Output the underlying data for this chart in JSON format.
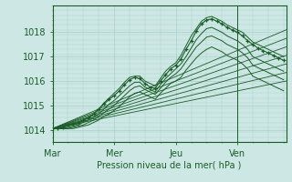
{
  "background_color": "#cde8e4",
  "grid_color": "#aacfc8",
  "line_color": "#1a5c28",
  "xlabel": "Pression niveau de la mer( hPa )",
  "xtick_labels": [
    "Mar",
    "Mer",
    "Jeu",
    "Ven"
  ],
  "xtick_positions": [
    0,
    24,
    48,
    72
  ],
  "ytick_labels": [
    "1014",
    "1015",
    "1016",
    "1017",
    "1018"
  ],
  "ytick_positions": [
    1014,
    1015,
    1016,
    1017,
    1018
  ],
  "ylim": [
    1013.6,
    1019.0
  ],
  "xlim": [
    0,
    91
  ],
  "vline_x": 72,
  "forecast_lines": [
    [
      1014.05,
      1016.0
    ],
    [
      1014.05,
      1016.35
    ],
    [
      1014.05,
      1016.7
    ],
    [
      1014.05,
      1017.05
    ],
    [
      1014.05,
      1017.4
    ],
    [
      1014.05,
      1017.75
    ],
    [
      1014.05,
      1018.1
    ]
  ],
  "main_x": [
    0,
    2,
    4,
    6,
    8,
    10,
    12,
    14,
    16,
    18,
    20,
    22,
    24,
    26,
    28,
    30,
    32,
    34,
    36,
    38,
    40,
    42,
    44,
    46,
    48,
    50,
    52,
    54,
    56,
    58,
    60,
    62,
    64,
    66,
    68,
    70,
    72,
    74,
    76,
    78,
    80,
    82,
    84,
    86,
    88,
    90
  ],
  "main_y": [
    1014.05,
    1014.05,
    1014.1,
    1014.2,
    1014.25,
    1014.3,
    1014.4,
    1014.5,
    1014.65,
    1014.85,
    1015.05,
    1015.25,
    1015.4,
    1015.6,
    1015.85,
    1016.05,
    1016.15,
    1016.1,
    1015.9,
    1015.75,
    1015.7,
    1016.0,
    1016.25,
    1016.5,
    1016.65,
    1016.9,
    1017.3,
    1017.65,
    1018.05,
    1018.35,
    1018.5,
    1018.55,
    1018.45,
    1018.35,
    1018.2,
    1018.1,
    1018.0,
    1017.85,
    1017.65,
    1017.5,
    1017.35,
    1017.25,
    1017.15,
    1017.05,
    1016.95,
    1016.85
  ],
  "curve_lines": [
    [
      1014.05,
      1014.05,
      1014.1,
      1014.15,
      1014.2,
      1014.25,
      1014.4,
      1014.5,
      1014.65,
      1014.85,
      1015.1,
      1015.3,
      1015.5,
      1015.7,
      1015.95,
      1016.15,
      1016.2,
      1016.2,
      1016.0,
      1015.9,
      1015.8,
      1016.1,
      1016.4,
      1016.6,
      1016.75,
      1017.05,
      1017.45,
      1017.85,
      1018.15,
      1018.45,
      1018.6,
      1018.65,
      1018.55,
      1018.45,
      1018.3,
      1018.2,
      1018.1,
      1018.0,
      1017.8,
      1017.6,
      1017.5,
      1017.4,
      1017.3,
      1017.2,
      1017.1,
      1017.0
    ],
    [
      1014.05,
      1014.05,
      1014.05,
      1014.1,
      1014.15,
      1014.2,
      1014.3,
      1014.4,
      1014.5,
      1014.65,
      1014.85,
      1015.05,
      1015.2,
      1015.4,
      1015.6,
      1015.8,
      1015.95,
      1015.95,
      1015.75,
      1015.65,
      1015.55,
      1015.85,
      1016.1,
      1016.3,
      1016.5,
      1016.7,
      1017.0,
      1017.35,
      1017.7,
      1017.95,
      1018.15,
      1018.2,
      1018.1,
      1018.0,
      1017.85,
      1017.75,
      1017.65,
      1017.5,
      1017.3,
      1017.0,
      1016.9,
      1016.8,
      1016.7,
      1016.6,
      1016.5,
      1016.4
    ],
    [
      1014.05,
      1014.05,
      1014.05,
      1014.05,
      1014.1,
      1014.15,
      1014.2,
      1014.3,
      1014.4,
      1014.55,
      1014.7,
      1014.85,
      1015.0,
      1015.2,
      1015.4,
      1015.6,
      1015.75,
      1015.8,
      1015.65,
      1015.55,
      1015.45,
      1015.7,
      1015.95,
      1016.15,
      1016.3,
      1016.5,
      1016.8,
      1017.1,
      1017.4,
      1017.6,
      1017.8,
      1017.85,
      1017.75,
      1017.65,
      1017.5,
      1017.4,
      1017.3,
      1017.15,
      1016.95,
      1016.65,
      1016.55,
      1016.45,
      1016.35,
      1016.25,
      1016.15,
      1016.05
    ],
    [
      1014.05,
      1014.05,
      1014.05,
      1014.05,
      1014.05,
      1014.1,
      1014.15,
      1014.2,
      1014.3,
      1014.4,
      1014.55,
      1014.65,
      1014.8,
      1014.95,
      1015.15,
      1015.35,
      1015.5,
      1015.55,
      1015.45,
      1015.35,
      1015.25,
      1015.5,
      1015.7,
      1015.9,
      1016.0,
      1016.15,
      1016.45,
      1016.7,
      1016.95,
      1017.15,
      1017.3,
      1017.4,
      1017.3,
      1017.2,
      1017.05,
      1016.95,
      1016.85,
      1016.7,
      1016.5,
      1016.2,
      1016.1,
      1016.0,
      1015.9,
      1015.8,
      1015.7,
      1015.6
    ]
  ]
}
